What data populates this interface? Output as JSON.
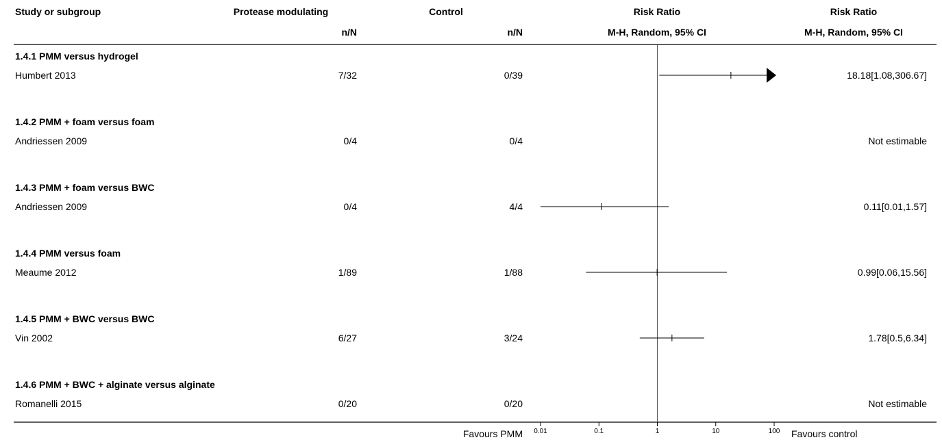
{
  "header": {
    "study": "Study or subgroup",
    "treatment": "Protease modulating",
    "treatment_sub": "n/N",
    "control": "Control",
    "control_sub": "n/N",
    "plot": "Risk Ratio",
    "plot_sub": "M-H, Random, 95% CI",
    "effect": "Risk Ratio",
    "effect_sub": "M-H, Random, 95% CI"
  },
  "footer": {
    "favours_left": "Favours PMM",
    "favours_right": "Favours control"
  },
  "chart_data": {
    "type": "forest",
    "scale": "log",
    "xlim": [
      0.01,
      100
    ],
    "ticks": [
      "0.01",
      "0.1",
      "1",
      "10",
      "100"
    ],
    "tick_values": [
      0.01,
      0.1,
      1,
      10,
      100
    ],
    "null_value": 1,
    "subgroups": [
      {
        "title": "1.4.1 PMM versus hydrogel",
        "studies": [
          {
            "name": "Humbert 2013",
            "treatment": "7/32",
            "control": "0/39",
            "rr": 18.18,
            "lo": 1.08,
            "hi": 306.67,
            "effect_text": "18.18[1.08,306.67]",
            "estimable": true
          }
        ]
      },
      {
        "title": "1.4.2 PMM + foam versus foam",
        "studies": [
          {
            "name": "Andriessen 2009",
            "treatment": "0/4",
            "control": "0/4",
            "rr": null,
            "lo": null,
            "hi": null,
            "effect_text": "Not estimable",
            "estimable": false
          }
        ]
      },
      {
        "title": "1.4.3 PMM + foam versus BWC",
        "studies": [
          {
            "name": "Andriessen 2009",
            "treatment": "0/4",
            "control": "4/4",
            "rr": 0.11,
            "lo": 0.01,
            "hi": 1.57,
            "effect_text": "0.11[0.01,1.57]",
            "estimable": true
          }
        ]
      },
      {
        "title": "1.4.4 PMM versus foam",
        "studies": [
          {
            "name": "Meaume 2012",
            "treatment": "1/89",
            "control": "1/88",
            "rr": 0.99,
            "lo": 0.06,
            "hi": 15.56,
            "effect_text": "0.99[0.06,15.56]",
            "estimable": true
          }
        ]
      },
      {
        "title": "1.4.5 PMM + BWC versus BWC",
        "studies": [
          {
            "name": "Vin 2002",
            "treatment": "6/27",
            "control": "3/24",
            "rr": 1.78,
            "lo": 0.5,
            "hi": 6.34,
            "effect_text": "1.78[0.5,6.34]",
            "estimable": true
          }
        ]
      },
      {
        "title": "1.4.6 PMM + BWC + alginate versus alginate",
        "studies": [
          {
            "name": "Romanelli 2015",
            "treatment": "0/20",
            "control": "0/20",
            "rr": null,
            "lo": null,
            "hi": null,
            "effect_text": "Not estimable",
            "estimable": false
          }
        ]
      }
    ]
  }
}
